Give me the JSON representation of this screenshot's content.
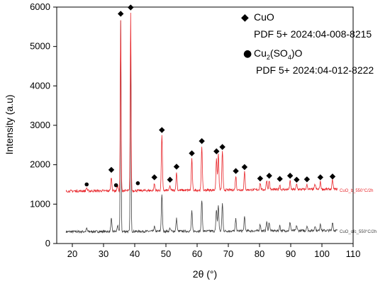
{
  "chart_data": {
    "type": "line",
    "xlabel": "2θ (°)",
    "ylabel": "Intensity (a.u)",
    "xlim": [
      15,
      110
    ],
    "ylim": [
      0,
      6000
    ],
    "x_ticks": [
      "20",
      "30",
      "40",
      "50",
      "60",
      "70",
      "80",
      "90",
      "100",
      "110"
    ],
    "y_ticks": [
      "0",
      "1000",
      "2000",
      "3000",
      "4000",
      "5000",
      "6000"
    ],
    "grid": false,
    "legend_position": "top-right",
    "legend": {
      "cuo_label": "CuO",
      "cuo_pdf": "PDF 5+ 2024:04-008-8215",
      "sulfate_label_parts": [
        "Cu",
        "2",
        "(SO",
        "4",
        ")O"
      ],
      "sulfate_pdf": "PDF 5+ 2024:04-012-8222"
    },
    "series": [
      {
        "name": "CuO_ofc_550°C/2h",
        "color": "#404040",
        "baseline": 300,
        "end_baseline": 330,
        "peaks": [
          {
            "x": 24.6,
            "y": 380
          },
          {
            "x": 32.5,
            "y": 620
          },
          {
            "x": 34.5,
            "y": 450
          },
          {
            "x": 35.5,
            "y": 5650
          },
          {
            "x": 38.7,
            "y": 5100
          },
          {
            "x": 46.3,
            "y": 420
          },
          {
            "x": 48.7,
            "y": 1250
          },
          {
            "x": 51.3,
            "y": 380
          },
          {
            "x": 53.4,
            "y": 620
          },
          {
            "x": 58.3,
            "y": 800
          },
          {
            "x": 61.5,
            "y": 1100
          },
          {
            "x": 66.2,
            "y": 850
          },
          {
            "x": 66.8,
            "y": 950
          },
          {
            "x": 68.1,
            "y": 1000
          },
          {
            "x": 72.4,
            "y": 600
          },
          {
            "x": 75.2,
            "y": 650
          },
          {
            "x": 80.2,
            "y": 470
          },
          {
            "x": 82.3,
            "y": 530
          },
          {
            "x": 83.1,
            "y": 520
          },
          {
            "x": 86.5,
            "y": 430
          },
          {
            "x": 89.8,
            "y": 520
          },
          {
            "x": 91.9,
            "y": 430
          },
          {
            "x": 95.2,
            "y": 420
          },
          {
            "x": 97.8,
            "y": 430
          },
          {
            "x": 99.5,
            "y": 480
          },
          {
            "x": 103.4,
            "y": 520
          }
        ]
      },
      {
        "name": "CuO_b_550°C/2h",
        "color": "#e8262b",
        "baseline": 1330,
        "end_baseline": 1380,
        "peaks": [
          {
            "x": 24.6,
            "y": 1410
          },
          {
            "x": 32.5,
            "y": 1680
          },
          {
            "x": 34.5,
            "y": 1460
          },
          {
            "x": 35.5,
            "y": 5650
          },
          {
            "x": 38.7,
            "y": 5850
          },
          {
            "x": 46.3,
            "y": 1500
          },
          {
            "x": 48.7,
            "y": 2750
          },
          {
            "x": 51.3,
            "y": 1440
          },
          {
            "x": 53.4,
            "y": 1780
          },
          {
            "x": 58.3,
            "y": 2120
          },
          {
            "x": 61.5,
            "y": 2450
          },
          {
            "x": 66.2,
            "y": 2150
          },
          {
            "x": 66.8,
            "y": 2250
          },
          {
            "x": 68.1,
            "y": 2330
          },
          {
            "x": 72.4,
            "y": 1680
          },
          {
            "x": 75.2,
            "y": 1780
          },
          {
            "x": 80.2,
            "y": 1500
          },
          {
            "x": 82.3,
            "y": 1570
          },
          {
            "x": 83.1,
            "y": 1560
          },
          {
            "x": 86.5,
            "y": 1450
          },
          {
            "x": 89.8,
            "y": 1540
          },
          {
            "x": 91.9,
            "y": 1460
          },
          {
            "x": 95.2,
            "y": 1450
          },
          {
            "x": 97.8,
            "y": 1460
          },
          {
            "x": 99.5,
            "y": 1520
          },
          {
            "x": 103.4,
            "y": 1560
          }
        ]
      }
    ],
    "x_start": 18,
    "x_end": 105,
    "markers": [
      {
        "kind": "cuo",
        "x": 32.5,
        "y": 1870
      },
      {
        "kind": "cuo",
        "x": 35.5,
        "y": 5830
      },
      {
        "kind": "cuo",
        "x": 38.7,
        "y": 5990
      },
      {
        "kind": "cuo",
        "x": 46.3,
        "y": 1680
      },
      {
        "kind": "cuo",
        "x": 48.7,
        "y": 2880
      },
      {
        "kind": "cuo",
        "x": 51.3,
        "y": 1620
      },
      {
        "kind": "cuo",
        "x": 53.4,
        "y": 1950
      },
      {
        "kind": "cuo",
        "x": 58.3,
        "y": 2290
      },
      {
        "kind": "cuo",
        "x": 61.5,
        "y": 2600
      },
      {
        "kind": "cuo",
        "x": 66.2,
        "y": 2340
      },
      {
        "kind": "cuo",
        "x": 68.1,
        "y": 2450
      },
      {
        "kind": "cuo",
        "x": 72.4,
        "y": 1840
      },
      {
        "kind": "cuo",
        "x": 75.2,
        "y": 1940
      },
      {
        "kind": "cuo",
        "x": 80.2,
        "y": 1650
      },
      {
        "kind": "cuo",
        "x": 83.1,
        "y": 1720
      },
      {
        "kind": "cuo",
        "x": 86.5,
        "y": 1640
      },
      {
        "kind": "cuo",
        "x": 89.8,
        "y": 1720
      },
      {
        "kind": "cuo",
        "x": 91.9,
        "y": 1620
      },
      {
        "kind": "cuo",
        "x": 95.2,
        "y": 1630
      },
      {
        "kind": "cuo",
        "x": 99.5,
        "y": 1680
      },
      {
        "kind": "cuo",
        "x": 103.4,
        "y": 1700
      },
      {
        "kind": "sulfate",
        "x": 24.6,
        "y": 1500
      },
      {
        "kind": "sulfate",
        "x": 34.0,
        "y": 1480
      },
      {
        "kind": "sulfate",
        "x": 41.0,
        "y": 1530
      }
    ]
  }
}
